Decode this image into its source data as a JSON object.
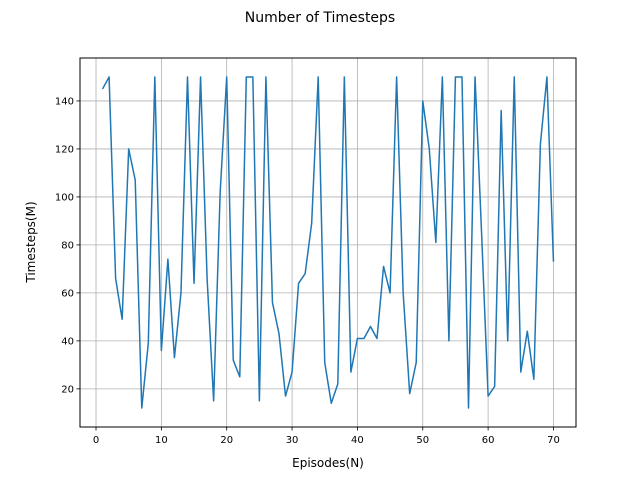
{
  "chart_data": {
    "type": "line",
    "title": "Number of Timesteps",
    "xlabel": "Episodes(N)",
    "ylabel": "Timesteps(M)",
    "xlim": [
      -2.45,
      73.45
    ],
    "ylim": [
      4.1,
      157.9
    ],
    "xticks": [
      0,
      10,
      20,
      30,
      40,
      50,
      60,
      70
    ],
    "yticks": [
      20,
      40,
      60,
      80,
      100,
      120,
      140
    ],
    "grid": true,
    "line_color": "#1f77b4",
    "x": [
      1,
      2,
      3,
      4,
      5,
      6,
      7,
      8,
      9,
      10,
      11,
      12,
      13,
      14,
      15,
      16,
      17,
      18,
      19,
      20,
      21,
      22,
      23,
      24,
      25,
      26,
      27,
      28,
      29,
      30,
      31,
      32,
      33,
      34,
      35,
      36,
      37,
      38,
      39,
      40,
      41,
      42,
      43,
      44,
      45,
      46,
      47,
      48,
      49,
      50,
      51,
      52,
      53,
      54,
      55,
      56,
      57,
      58,
      59,
      60,
      61,
      62,
      63,
      64,
      65,
      66,
      67,
      68,
      69,
      70
    ],
    "series": [
      {
        "values": [
          145,
          150,
          66,
          49,
          120,
          107,
          12,
          39,
          150,
          36,
          74,
          33,
          60,
          150,
          64,
          150,
          66,
          15,
          102,
          150,
          32,
          25,
          150,
          150,
          15,
          150,
          56,
          43,
          17,
          27,
          64,
          68,
          89,
          150,
          31,
          14,
          22,
          150,
          27,
          41,
          41,
          46,
          41,
          71,
          60,
          150,
          60,
          18,
          31,
          140,
          120,
          81,
          150,
          40,
          150,
          150,
          12,
          150,
          85,
          17,
          21,
          136,
          40,
          150,
          27,
          44,
          24,
          122,
          150,
          73
        ]
      }
    ]
  }
}
